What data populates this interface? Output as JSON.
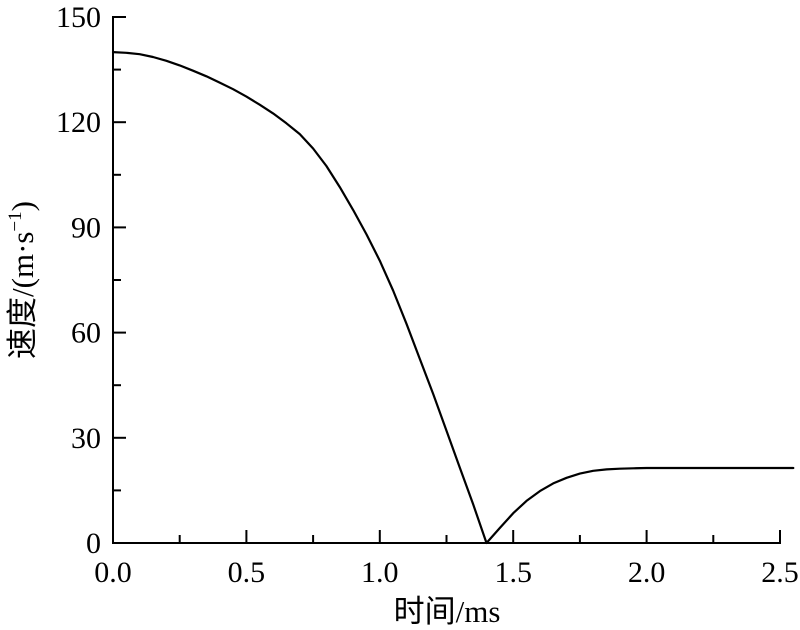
{
  "chart_data": {
    "type": "line",
    "title": "",
    "xlabel": "时间/ms",
    "ylabel": "速度/(m·s⁻¹)",
    "ylabel_parts": {
      "pre": "速度/(m·s",
      "sup": "−1",
      "post": ")"
    },
    "xlim": [
      0.0,
      2.5
    ],
    "ylim": [
      0,
      150
    ],
    "x_major_ticks": [
      0.0,
      0.5,
      1.0,
      1.5,
      2.0,
      2.5
    ],
    "x_major_labels": [
      "0.0",
      "0.5",
      "1.0",
      "1.5",
      "2.0",
      "2.5"
    ],
    "x_minor_ticks": [
      0.25,
      0.75,
      1.25,
      1.75,
      2.25
    ],
    "y_major_ticks": [
      0,
      30,
      60,
      90,
      120,
      150
    ],
    "y_major_labels": [
      "0",
      "30",
      "60",
      "90",
      "120",
      "150"
    ],
    "y_minor_ticks": [
      15,
      45,
      75,
      105,
      135
    ],
    "grid": false,
    "legend": null,
    "background_color": "#ffffff",
    "axis_color": "#000000",
    "line_color": "#000000",
    "series": [
      {
        "name": "velocity",
        "x": [
          0.0,
          0.05,
          0.1,
          0.15,
          0.2,
          0.25,
          0.3,
          0.35,
          0.4,
          0.45,
          0.5,
          0.55,
          0.6,
          0.65,
          0.7,
          0.75,
          0.8,
          0.85,
          0.9,
          0.95,
          1.0,
          1.05,
          1.1,
          1.15,
          1.2,
          1.25,
          1.3,
          1.35,
          1.4,
          1.45,
          1.5,
          1.55,
          1.6,
          1.65,
          1.7,
          1.75,
          1.8,
          1.85,
          1.9,
          1.95,
          2.0,
          2.1,
          2.2,
          2.3,
          2.4,
          2.5,
          2.55
        ],
        "y": [
          140,
          139.8,
          139.4,
          138.6,
          137.5,
          136.2,
          134.7,
          133.1,
          131.3,
          129.4,
          127.3,
          125,
          122.5,
          119.7,
          116.6,
          112.5,
          107.5,
          101.5,
          95,
          88,
          80.5,
          72,
          62.5,
          52.5,
          42.5,
          32,
          21.5,
          11,
          0,
          4.3,
          8.5,
          12,
          14.8,
          17,
          18.6,
          19.8,
          20.6,
          21,
          21.2,
          21.3,
          21.4,
          21.4,
          21.4,
          21.4,
          21.4,
          21.4,
          21.4
        ]
      }
    ],
    "annotations": {
      "start_value": 140,
      "zero_crossing_time_ms": 1.4,
      "plateau_value": 21.4
    }
  }
}
